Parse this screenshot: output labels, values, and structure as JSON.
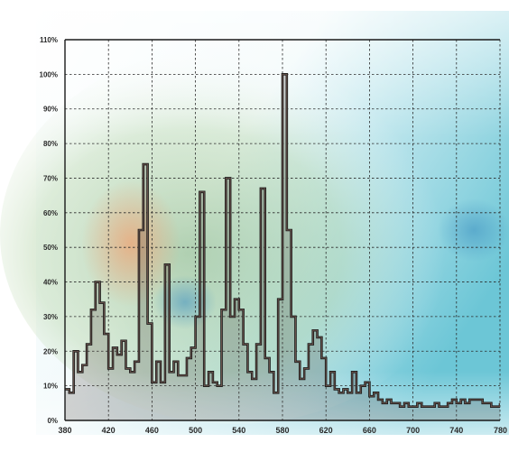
{
  "chart_data": {
    "type": "line",
    "title": "",
    "xlabel": "",
    "ylabel": "",
    "xlim": [
      380,
      780
    ],
    "ylim": [
      0,
      110
    ],
    "x_ticks": [
      380,
      420,
      460,
      500,
      540,
      580,
      620,
      660,
      700,
      740,
      780
    ],
    "x_tick_labels": [
      "380",
      "420",
      "460",
      "500",
      "540",
      "580",
      "620",
      "660",
      "700",
      "740",
      "780"
    ],
    "y_ticks": [
      0,
      10,
      20,
      30,
      40,
      50,
      60,
      70,
      80,
      90,
      100,
      110
    ],
    "y_tick_labels": [
      "0%",
      "10%",
      "20%",
      "30%",
      "40%",
      "50%",
      "60%",
      "70%",
      "80%",
      "90%",
      "100%",
      "110%"
    ],
    "grid": true,
    "grid_style": "dashed",
    "legend": "none",
    "line_style": "step",
    "series_color": "#1a1a1a",
    "series_fill": "#4a3a36",
    "series": [
      {
        "name": "",
        "x": [
          380,
          384,
          388,
          392,
          396,
          400,
          404,
          408,
          412,
          416,
          420,
          424,
          428,
          432,
          436,
          440,
          444,
          448,
          452,
          456,
          460,
          464,
          468,
          472,
          476,
          480,
          484,
          488,
          492,
          496,
          500,
          504,
          508,
          512,
          516,
          520,
          524,
          528,
          532,
          536,
          540,
          544,
          548,
          552,
          556,
          560,
          564,
          568,
          572,
          576,
          580,
          584,
          588,
          592,
          596,
          600,
          604,
          608,
          612,
          616,
          620,
          624,
          628,
          632,
          636,
          640,
          644,
          648,
          652,
          656,
          660,
          664,
          668,
          672,
          676,
          680,
          684,
          688,
          692,
          696,
          700,
          704,
          708,
          712,
          716,
          720,
          724,
          728,
          732,
          736,
          740,
          744,
          748,
          752,
          756,
          760,
          764,
          768,
          772,
          776,
          780
        ],
        "y": [
          9,
          8,
          20,
          14,
          16,
          22,
          32,
          40,
          34,
          25,
          15,
          21,
          19,
          23,
          15,
          14,
          17,
          55,
          74,
          28,
          11,
          17,
          11,
          45,
          14,
          17,
          13,
          13,
          18,
          21,
          30,
          66,
          10,
          14,
          11,
          10,
          32,
          70,
          30,
          35,
          32,
          22,
          14,
          12,
          22,
          67,
          18,
          14,
          8,
          35,
          100,
          55,
          30,
          17,
          12,
          15,
          22,
          26,
          24,
          18,
          10,
          14,
          9,
          8,
          9,
          8,
          14,
          8,
          10,
          11,
          7,
          8,
          6,
          5,
          6,
          5,
          5,
          4,
          5,
          4,
          4,
          5,
          4,
          4,
          4,
          5,
          4,
          4,
          5,
          6,
          5,
          6,
          5,
          6,
          6,
          6,
          5,
          5,
          4,
          4,
          5
        ]
      }
    ]
  }
}
